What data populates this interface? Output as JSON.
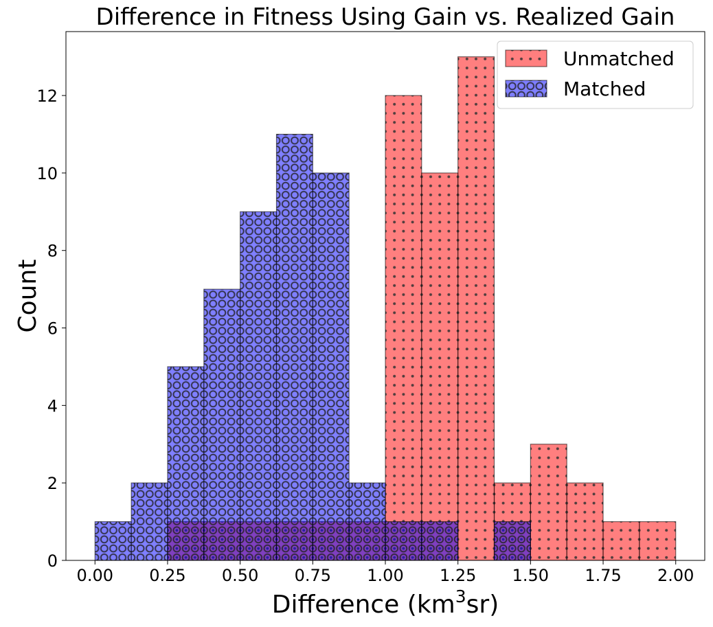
{
  "chart_data": {
    "type": "bar",
    "subtype": "histogram",
    "title": "Difference in Fitness Using Gain vs. Realized Gain",
    "xlabel_main": "Difference (km",
    "xlabel_sup": "3",
    "xlabel_tail": "sr)",
    "ylabel": "Count",
    "xlim": [
      -0.1,
      2.1
    ],
    "ylim": [
      0,
      13.65
    ],
    "xticks": [
      0.0,
      0.25,
      0.5,
      0.75,
      1.0,
      1.25,
      1.5,
      1.75,
      2.0
    ],
    "xtick_labels": [
      "0.00",
      "0.25",
      "0.50",
      "0.75",
      "1.00",
      "1.25",
      "1.50",
      "1.75",
      "2.00"
    ],
    "yticks": [
      0,
      2,
      4,
      6,
      8,
      10,
      12
    ],
    "ytick_labels": [
      "0",
      "2",
      "4",
      "6",
      "8",
      "10",
      "12"
    ],
    "legend_position": "top-right",
    "series": [
      {
        "name": "Unmatched",
        "color": "#ff0000",
        "hatch": "dots",
        "bin_edges": [
          0.25,
          0.375,
          0.5,
          0.625,
          0.75,
          0.875,
          1.0,
          1.125,
          1.25,
          1.375,
          1.5,
          1.625,
          1.75,
          1.875,
          2.0
        ],
        "counts": [
          1,
          1,
          1,
          1,
          1,
          1,
          12,
          10,
          13,
          2,
          3,
          2,
          1,
          1
        ]
      },
      {
        "name": "Matched",
        "color": "#0000ff",
        "hatch": "circles",
        "bin_edges": [
          0.0,
          0.125,
          0.25,
          0.375,
          0.5,
          0.625,
          0.75,
          0.875,
          1.0,
          1.125,
          1.25,
          1.375,
          1.5
        ],
        "counts": [
          1,
          2,
          5,
          7,
          9,
          11,
          10,
          2,
          1,
          1,
          0,
          1
        ]
      }
    ]
  }
}
